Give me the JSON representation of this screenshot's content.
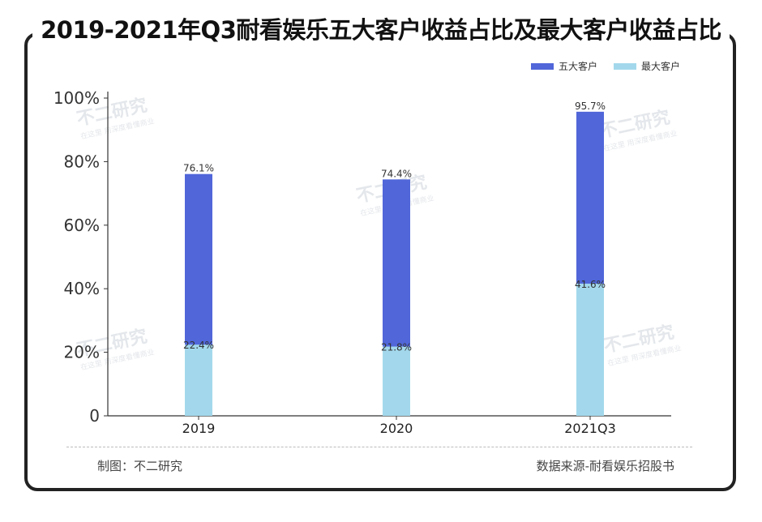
{
  "title": "2019-2021年Q3耐看娱乐五大客户收益占比及最大客户收益占比",
  "legend": [
    {
      "name": "五大客户",
      "color": "#5066d9"
    },
    {
      "name": "最大客户",
      "color": "#a3d8ec"
    }
  ],
  "footer": {
    "left": "制图：不二研究",
    "right": "数据来源-耐看娱乐招股书"
  },
  "watermark": {
    "brand": "不二研究",
    "slogan": "在这里 用深度看懂商业"
  },
  "chart_data": {
    "type": "bar",
    "categories": [
      "2019",
      "2020",
      "2021Q3"
    ],
    "series": [
      {
        "name": "五大客户",
        "values": [
          76.1,
          74.4,
          95.7
        ],
        "labels": [
          "76.1%",
          "74.4%",
          "95.7%"
        ],
        "color": "#5066d9"
      },
      {
        "name": "最大客户",
        "values": [
          22.4,
          21.8,
          41.6
        ],
        "labels": [
          "22.4%",
          "21.8%",
          "41.6%"
        ],
        "color": "#a3d8ec"
      }
    ],
    "yticks": [
      "0",
      "20%",
      "40%",
      "60%",
      "80%",
      "100%"
    ],
    "ylim": [
      0,
      100
    ],
    "grid": false,
    "legend_position": "top-right"
  }
}
